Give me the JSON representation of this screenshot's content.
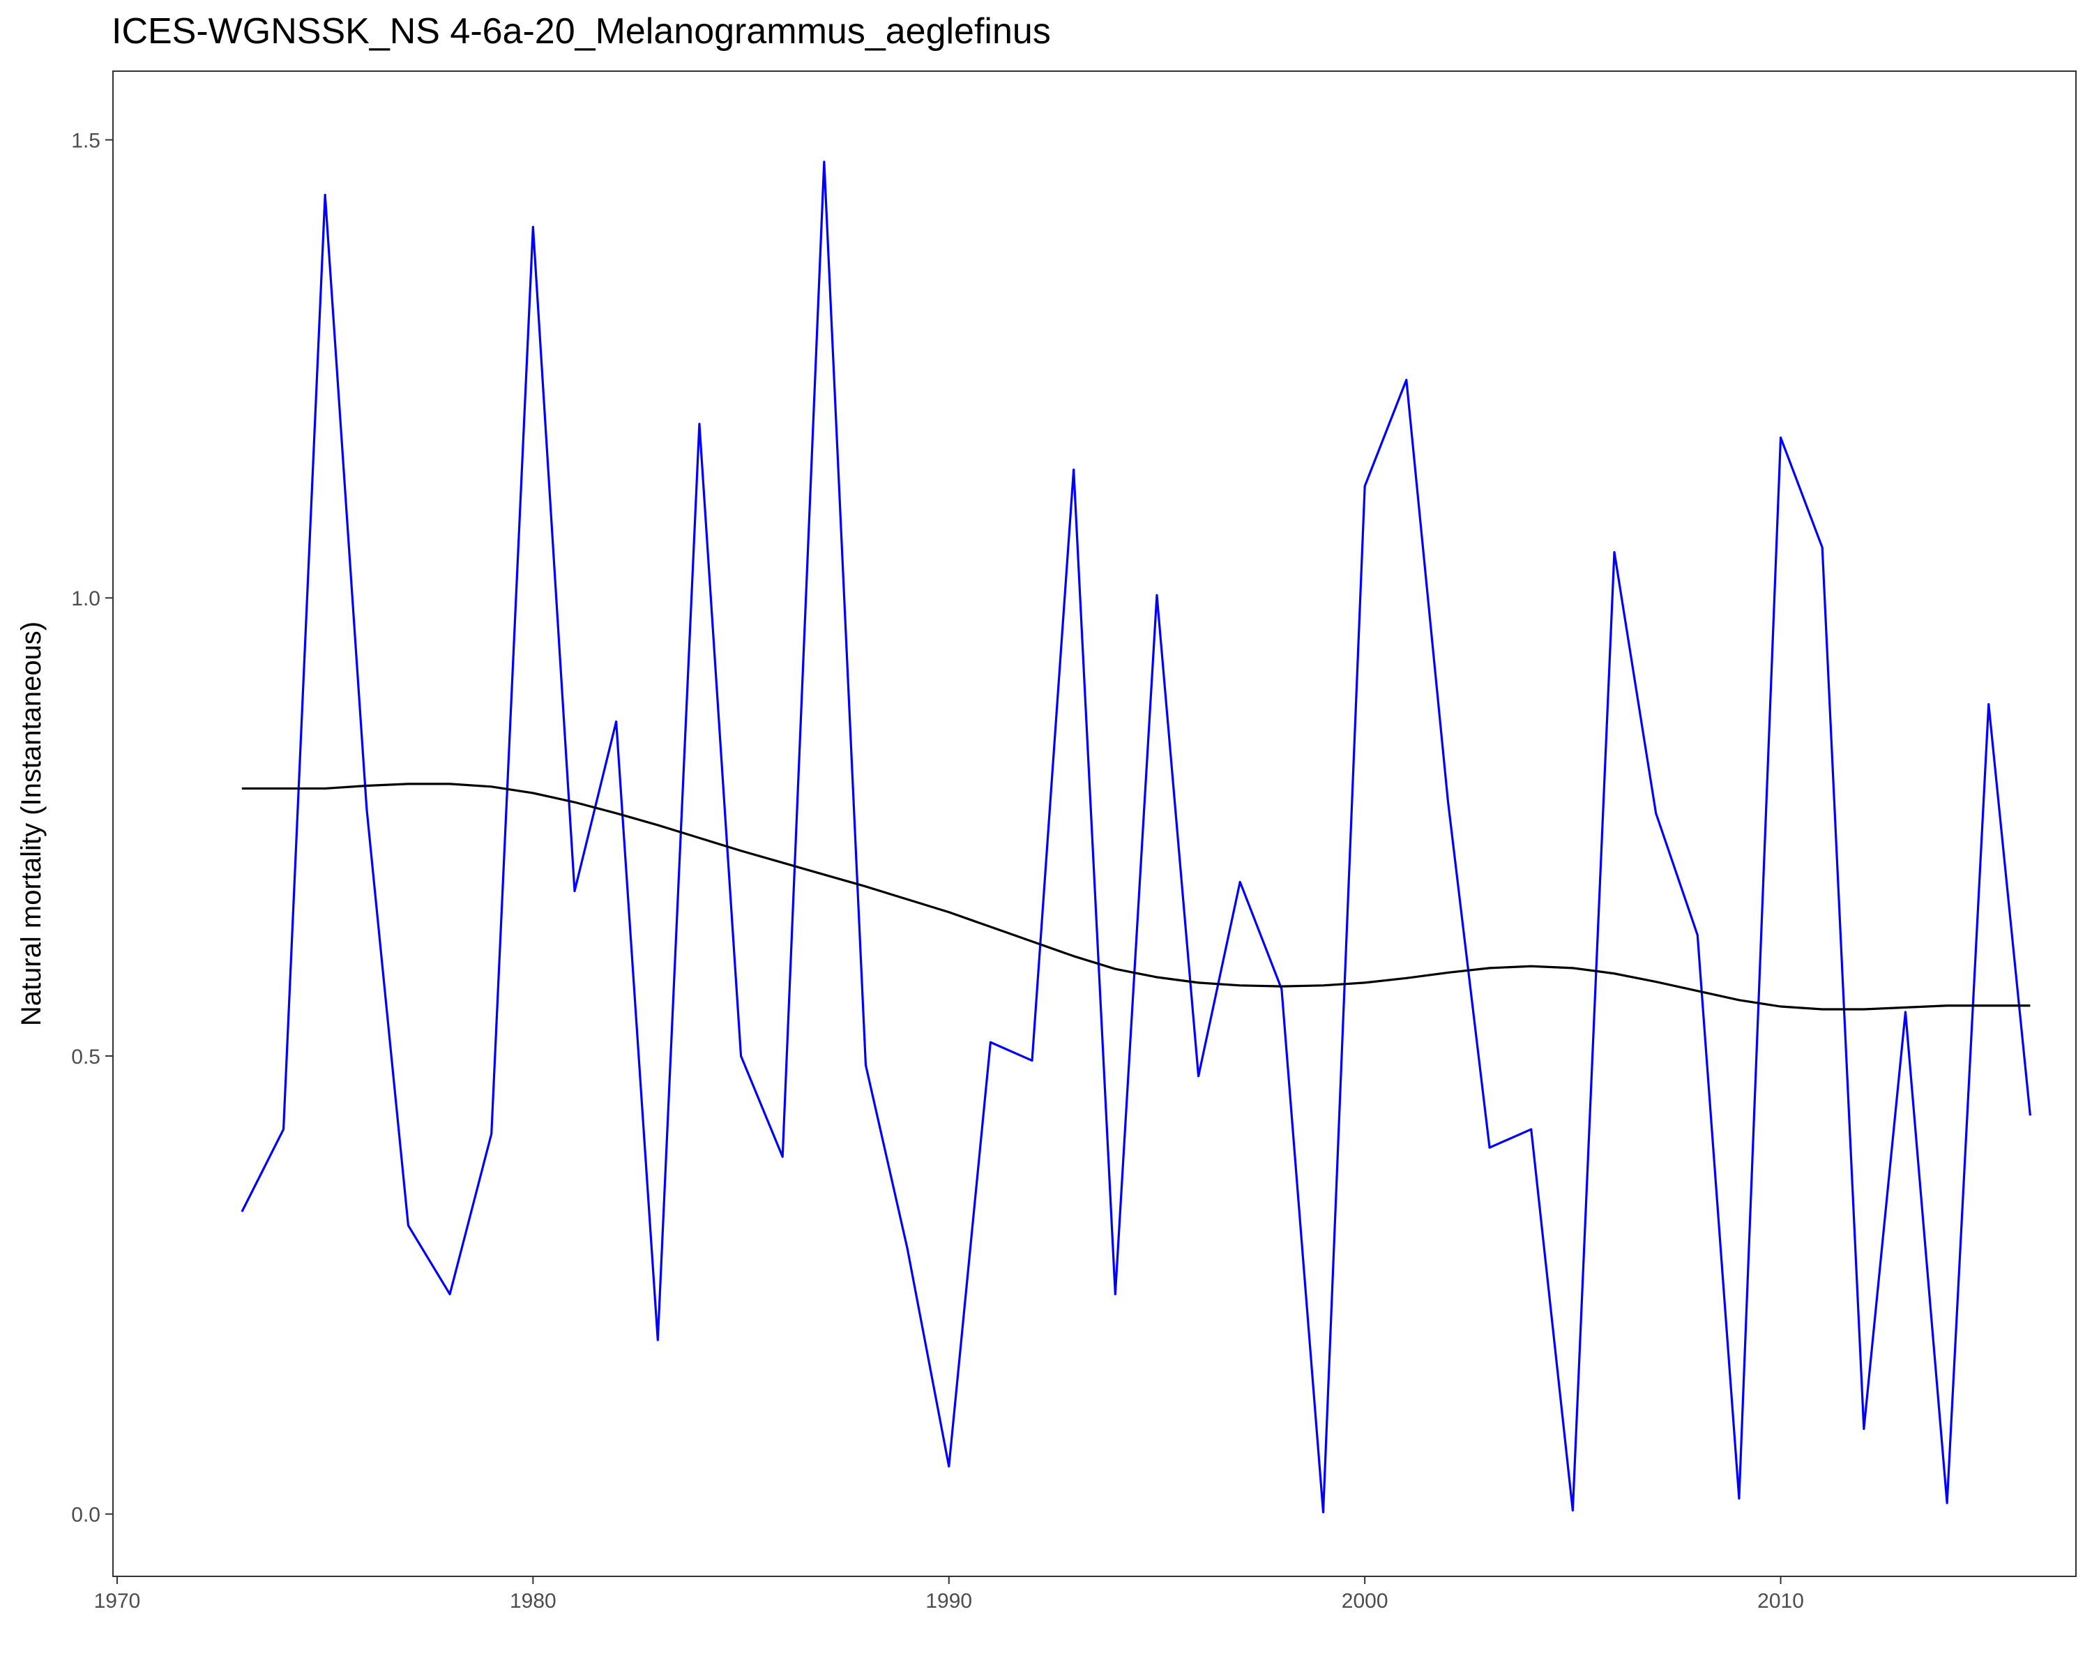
{
  "chart_data": {
    "type": "line",
    "title": "ICES-WGNSSK_NS  4-6a-20_Melanogrammus_aeglefinus",
    "xlabel": "",
    "ylabel": "Natural mortality (Instantaneous)",
    "xlim": [
      1969.9,
      2017.1
    ],
    "ylim": [
      -0.068,
      1.575
    ],
    "xticks": [
      1970,
      1980,
      1990,
      2000,
      2010
    ],
    "xtick_labels": [
      "1970",
      "1980",
      "1990",
      "2000",
      "2010"
    ],
    "yticks": [
      0.0,
      0.5,
      1.0,
      1.5
    ],
    "ytick_labels": [
      "0.0",
      "0.5",
      "1.0",
      "1.5"
    ],
    "grid": false,
    "legend": "none",
    "x": [
      1973,
      1974,
      1975,
      1976,
      1977,
      1978,
      1979,
      1980,
      1981,
      1982,
      1983,
      1984,
      1985,
      1986,
      1987,
      1988,
      1989,
      1990,
      1991,
      1992,
      1993,
      1994,
      1995,
      1996,
      1997,
      1998,
      1999,
      2000,
      2001,
      2002,
      2003,
      2004,
      2005,
      2006,
      2007,
      2008,
      2009,
      2010,
      2011,
      2012,
      2013,
      2014,
      2015,
      2016
    ],
    "series": [
      {
        "color": "#0000ff",
        "values": [
          0.33,
          0.42,
          1.44,
          0.77,
          0.315,
          0.24,
          0.415,
          1.405,
          0.68,
          0.865,
          0.19,
          1.19,
          0.5,
          0.39,
          1.476,
          0.49,
          0.29,
          0.052,
          0.515,
          0.495,
          1.14,
          0.24,
          1.003,
          0.478,
          0.69,
          0.573,
          0.002,
          1.122,
          1.238,
          0.778,
          0.4,
          0.42,
          0.004,
          1.05,
          0.765,
          0.632,
          0.017,
          1.175,
          1.055,
          0.093,
          0.548,
          0.012,
          0.884,
          0.435
        ]
      },
      {
        "color": "#000000",
        "values": [
          0.792,
          0.792,
          0.792,
          0.795,
          0.797,
          0.797,
          0.794,
          0.787,
          0.777,
          0.765,
          0.752,
          0.738,
          0.724,
          0.711,
          0.698,
          0.685,
          0.671,
          0.657,
          0.641,
          0.625,
          0.609,
          0.595,
          0.586,
          0.58,
          0.577,
          0.576,
          0.577,
          0.58,
          0.585,
          0.591,
          0.596,
          0.598,
          0.596,
          0.59,
          0.581,
          0.571,
          0.561,
          0.554,
          0.551,
          0.551,
          0.553,
          0.555,
          0.555,
          0.555
        ]
      }
    ]
  }
}
